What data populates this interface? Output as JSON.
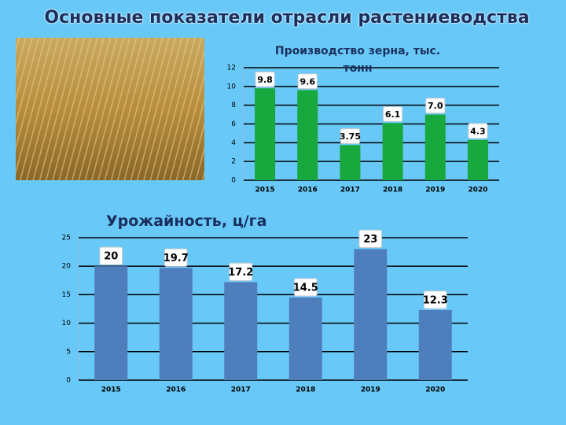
{
  "title": "Основные показатели отрасли растениеводства",
  "chart_data": [
    {
      "type": "bar",
      "title": "Производство зерна, тыс. тонн",
      "categories": [
        "2015",
        "2016",
        "2017",
        "2018",
        "2019",
        "2020"
      ],
      "values": [
        9.8,
        9.6,
        3.75,
        6.1,
        7.0,
        4.3
      ],
      "value_labels": [
        "9.8",
        "9.6",
        "3.75",
        "6.1",
        "7.0",
        "4.3"
      ],
      "color": "#17a83e",
      "ylim": [
        0,
        12
      ],
      "yticks": [
        0,
        2,
        4,
        6,
        8,
        10,
        12
      ],
      "grid": true
    },
    {
      "type": "bar",
      "title": "Урожайность, ц/га",
      "categories": [
        "2015",
        "2016",
        "2017",
        "2018",
        "2019",
        "2020"
      ],
      "values": [
        20,
        19.7,
        17.2,
        14.5,
        23,
        12.3
      ],
      "color": "#4f7ebd",
      "ylim": [
        0,
        25
      ],
      "yticks": [
        0,
        5,
        10,
        15,
        20,
        25
      ],
      "grid": true
    }
  ]
}
